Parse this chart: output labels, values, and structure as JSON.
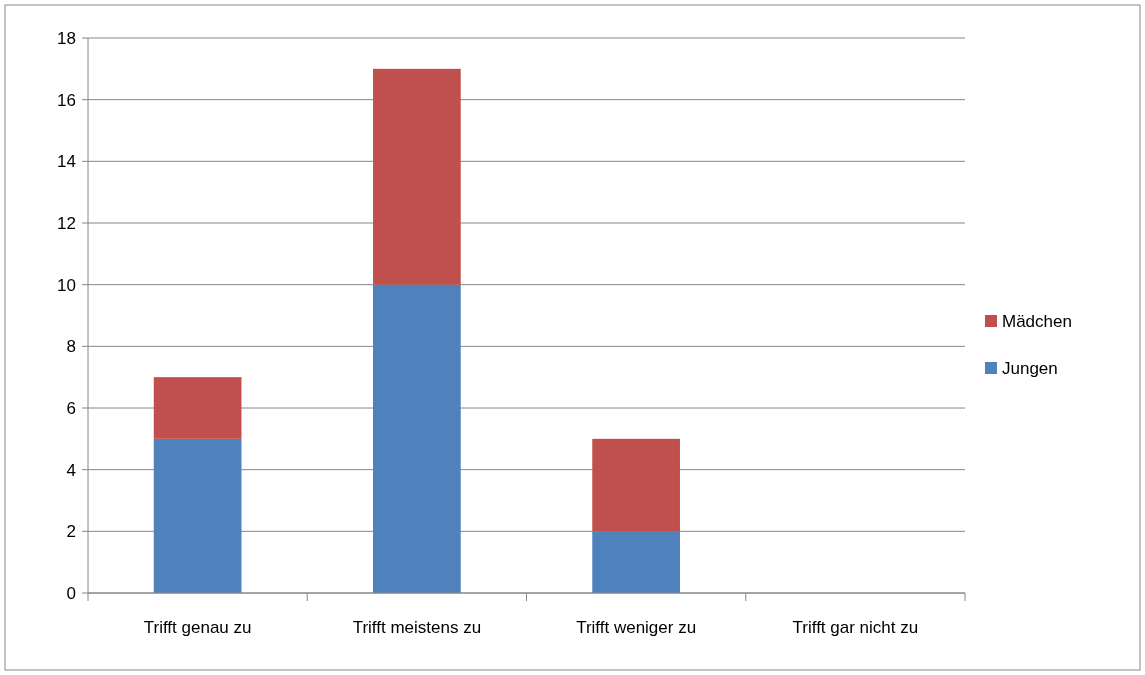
{
  "chart_data": {
    "type": "bar",
    "stacked": true,
    "categories": [
      "Trifft genau zu",
      "Trifft meistens zu",
      "Trifft weniger zu",
      "Trifft gar nicht zu"
    ],
    "series": [
      {
        "name": "Jungen",
        "color": "#4f81bd",
        "values": [
          5,
          10,
          2,
          0
        ]
      },
      {
        "name": "Mädchen",
        "color": "#c0504d",
        "values": [
          2,
          7,
          3,
          0
        ]
      }
    ],
    "ylim": [
      0,
      18
    ],
    "yticks": [
      0,
      2,
      4,
      6,
      8,
      10,
      12,
      14,
      16,
      18
    ],
    "grid": "y",
    "legend": "right"
  }
}
